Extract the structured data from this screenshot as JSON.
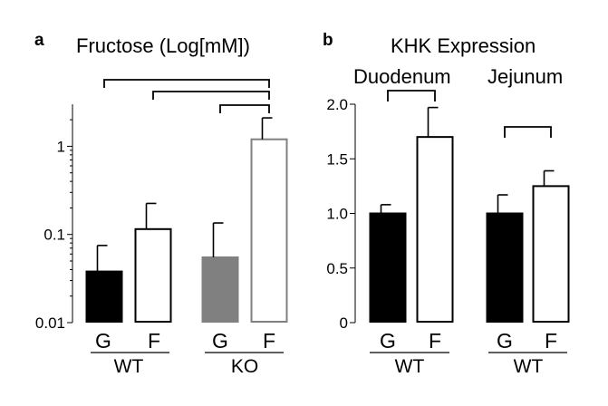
{
  "chart_data": [
    {
      "panel_letter": "a",
      "type": "bar",
      "title": "Fructose (Log[mM])",
      "yscale": "log",
      "ylim": [
        0.01,
        3
      ],
      "yticks": [
        0.01,
        0.1,
        1
      ],
      "ytick_labels": [
        "0.01",
        "0.1",
        "1"
      ],
      "categories": [
        "G",
        "F",
        "G",
        "F"
      ],
      "groups": [
        {
          "label": "WT",
          "categories": [
            "G",
            "F"
          ]
        },
        {
          "label": "KO",
          "categories": [
            "G",
            "F"
          ]
        }
      ],
      "values": [
        0.038,
        0.115,
        0.055,
        1.2
      ],
      "errors_upper": [
        0.075,
        0.225,
        0.135,
        2.1
      ],
      "bar_fills": [
        "#000000",
        "#ffffff",
        "#808080",
        "#ffffff"
      ],
      "bar_strokes": [
        "#000000",
        "#000000",
        "#808080",
        "#808080"
      ],
      "brackets": [
        {
          "from": 0,
          "to": 3
        },
        {
          "from": 1,
          "to": 3
        },
        {
          "from": 2,
          "to": 3
        }
      ]
    },
    {
      "panel_letter": "b",
      "type": "bar",
      "title": "KHK Expression",
      "subtitles": [
        "Duodenum",
        "Jejunum"
      ],
      "yscale": "linear",
      "ylim": [
        0,
        2.0
      ],
      "yticks": [
        0,
        0.5,
        1.0,
        1.5,
        2.0
      ],
      "ytick_labels": [
        "0",
        "0.5",
        "1.0",
        "1.5",
        "2.0"
      ],
      "categories": [
        "G",
        "F",
        "G",
        "F"
      ],
      "groups": [
        {
          "label": "WT",
          "categories": [
            "G",
            "F"
          ]
        },
        {
          "label": "WT",
          "categories": [
            "G",
            "F"
          ]
        }
      ],
      "values": [
        1.0,
        1.7,
        1.0,
        1.25
      ],
      "errors_upper": [
        1.08,
        1.97,
        1.17,
        1.39
      ],
      "bar_fills": [
        "#000000",
        "#ffffff",
        "#000000",
        "#ffffff"
      ],
      "bar_strokes": [
        "#000000",
        "#000000",
        "#000000",
        "#000000"
      ],
      "brackets": [
        {
          "from": 0,
          "to": 1
        },
        {
          "from": 2,
          "to": 3
        }
      ]
    }
  ]
}
